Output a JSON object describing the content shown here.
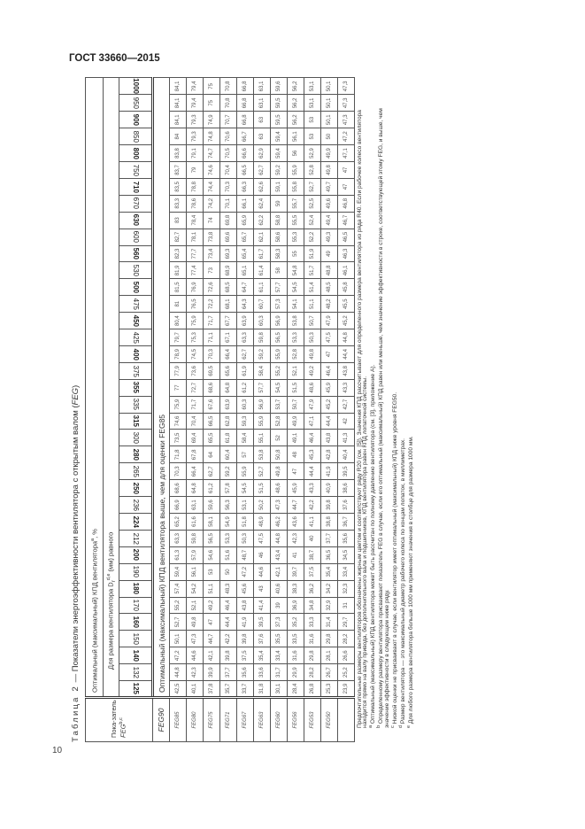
{
  "doc_header": "ГОСТ 33660—2015",
  "page_number": "10",
  "table": {
    "title_label": "Таблица 2",
    "title_text": " — Показатели энергоэффективности вентилятора с открытым валом (",
    "title_feg": "FEG",
    "title_end": ")",
    "label_head": "Пока-затель",
    "label_head_feg": "FEG",
    "label_head_sup": "b,c",
    "header1": "Оптимальный (максимальный) КПД вентилятора",
    "header1_sup": "a",
    "header1_end": ", %",
    "header2": "Для размера вентилятора D",
    "header2_sub": "r",
    "header2_sup": "d,e",
    "header2_end": " (мм) равного",
    "sizes": [
      "125",
      "132",
      "140",
      "150",
      "160",
      "170",
      "180",
      "190",
      "200",
      "212",
      "224",
      "236",
      "250",
      "265",
      "280",
      "300",
      "315",
      "335",
      "355",
      "375",
      "400",
      "425",
      "450",
      "475",
      "500",
      "530",
      "560",
      "600",
      "630",
      "670",
      "710",
      "750",
      "800",
      "850",
      "900",
      "950",
      "1000"
    ],
    "bold_sizes": [
      "125",
      "140",
      "160",
      "180",
      "200",
      "224",
      "250",
      "280",
      "315",
      "355",
      "400",
      "450",
      "500",
      "560",
      "630",
      "710",
      "800",
      "900",
      "1000"
    ],
    "feg90": {
      "label": "FEG90",
      "text": "Оптимальный (максимальный) КПД вентилятора выше, чем для оценки FEG85"
    },
    "rows": [
      {
        "label": "FEG85",
        "values": [
          "42,5",
          "44,8",
          "47,2",
          "50,1",
          "52,7",
          "55,2",
          "57,4",
          "59,4",
          "61,3",
          "63,3",
          "65,2",
          "66,9",
          "68,6",
          "70,3",
          "71,8",
          "73,5",
          "74,6",
          "75,9",
          "77",
          "77,9",
          "78,9",
          "79,7",
          "80,4",
          "81",
          "81,5",
          "81,9",
          "82,3",
          "82,7",
          "83",
          "83,3",
          "83,5",
          "83,7",
          "83,8",
          "84",
          "84,1",
          "84,1",
          "84,1"
        ]
      },
      {
        "label": "FEG80",
        "values": [
          "40,1",
          "42,3",
          "44,6",
          "47,3",
          "49,8",
          "52,1",
          "54,2",
          "56,1",
          "57,9",
          "59,8",
          "61,6",
          "63,1",
          "64,8",
          "66,4",
          "67,8",
          "69,4",
          "70,4",
          "71,7",
          "72,7",
          "73,6",
          "74,5",
          "75,3",
          "75,9",
          "76,5",
          "76,9",
          "77,4",
          "77,7",
          "78,1",
          "78,4",
          "78,6",
          "78,8",
          "79",
          "79,1",
          "79,3",
          "79,3",
          "79,4",
          "79,4"
        ]
      },
      {
        "label": "FEG75",
        "values": [
          "37,8",
          "39,9",
          "42,1",
          "44,7",
          "47",
          "49,2",
          "51,1",
          "53",
          "54,6",
          "56,5",
          "58,1",
          "59,6",
          "61,2",
          "62,7",
          "64",
          "65,5",
          "66,5",
          "67,6",
          "68,6",
          "69,5",
          "70,3",
          "71,1",
          "71,7",
          "72,2",
          "72,6",
          "73",
          "73,4",
          "73,8",
          "74",
          "74,2",
          "74,4",
          "74,6",
          "74,7",
          "74,8",
          "74,9",
          "75",
          "75"
        ]
      },
      {
        "label": "FEG71",
        "values": [
          "35,7",
          "37,7",
          "39,8",
          "42,2",
          "44,4",
          "46,4",
          "48,3",
          "50",
          "51,6",
          "53,3",
          "54,9",
          "56,3",
          "57,8",
          "59,2",
          "60,4",
          "61,8",
          "62,8",
          "63,9",
          "64,8",
          "65,6",
          "66,4",
          "67,1",
          "67,7",
          "68,1",
          "68,5",
          "68,9",
          "69,3",
          "69,6",
          "69,8",
          "70,1",
          "70,3",
          "70,4",
          "70,5",
          "70,6",
          "70,7",
          "70,8",
          "70,8"
        ]
      },
      {
        "label": "FEG67",
        "values": [
          "33,7",
          "35,6",
          "37,5",
          "39,8",
          "41,9",
          "43,8",
          "45,6",
          "47,2",
          "48,7",
          "50,3",
          "51,8",
          "53,1",
          "54,5",
          "55,9",
          "57",
          "58,4",
          "59,3",
          "60,3",
          "61,2",
          "61,9",
          "62,7",
          "63,3",
          "63,9",
          "64,3",
          "64,7",
          "65,1",
          "65,4",
          "65,7",
          "65,9",
          "66,1",
          "66,3",
          "66,5",
          "66,6",
          "66,7",
          "66,8",
          "66,8",
          "66,8"
        ]
      },
      {
        "label": "FEG63",
        "values": [
          "31,8",
          "33,6",
          "35,4",
          "37,6",
          "39,5",
          "41,4",
          "43",
          "44,6",
          "46",
          "47,5",
          "48,9",
          "50,2",
          "51,5",
          "52,7",
          "53,8",
          "55,1",
          "55,9",
          "56,9",
          "57,7",
          "58,4",
          "59,2",
          "59,8",
          "60,3",
          "60,7",
          "61,1",
          "61,4",
          "61,7",
          "62,1",
          "62,2",
          "62,4",
          "62,6",
          "62,7",
          "62,9",
          "63",
          "63",
          "63,1",
          "63,1"
        ]
      },
      {
        "label": "FEG60",
        "values": [
          "30,1",
          "31,7",
          "33,4",
          "35,5",
          "37,3",
          "39",
          "40,6",
          "42,1",
          "43,4",
          "44,8",
          "46,2",
          "47,3",
          "48,6",
          "49,8",
          "50,8",
          "52",
          "52,8",
          "53,7",
          "54,5",
          "55,2",
          "55,9",
          "56,5",
          "56,9",
          "57,3",
          "57,7",
          "58",
          "58,3",
          "58,6",
          "58,8",
          "59",
          "59,1",
          "59,2",
          "59,4",
          "59,4",
          "59,5",
          "59,5",
          "59,6"
        ]
      },
      {
        "label": "FEG56",
        "values": [
          "28,4",
          "29,9",
          "31,6",
          "33,5",
          "35,2",
          "36,9",
          "38,3",
          "39,7",
          "41",
          "42,3",
          "43,6",
          "44,7",
          "45,9",
          "47",
          "48",
          "49,1",
          "49,9",
          "50,7",
          "51,5",
          "52,1",
          "52,8",
          "53,3",
          "53,8",
          "54,1",
          "54,5",
          "54,8",
          "55",
          "55,3",
          "55,5",
          "55,7",
          "55,8",
          "55,9",
          "56",
          "56,1",
          "56,2",
          "56,2",
          "56,2"
        ]
      },
      {
        "label": "FEG53",
        "values": [
          "26,8",
          "28,2",
          "29,8",
          "31,6",
          "33,3",
          "34,8",
          "36,2",
          "37,5",
          "38,7",
          "40",
          "41,1",
          "42,2",
          "43,3",
          "44,4",
          "45,3",
          "46,4",
          "47,1",
          "47,9",
          "48,6",
          "49,2",
          "49,8",
          "50,3",
          "50,7",
          "51,1",
          "51,4",
          "51,7",
          "51,9",
          "52,2",
          "52,4",
          "52,5",
          "52,7",
          "52,8",
          "52,9",
          "53",
          "53",
          "53,1",
          "53,1"
        ]
      },
      {
        "label": "FEG50",
        "values": [
          "25,3",
          "26,7",
          "28,1",
          "29,8",
          "31,4",
          "32,9",
          "34,2",
          "35,4",
          "36,5",
          "37,7",
          "38,8",
          "39,8",
          "40,9",
          "41,9",
          "42,8",
          "43,8",
          "44,4",
          "45,2",
          "45,9",
          "46,4",
          "47",
          "47,5",
          "47,9",
          "48,2",
          "48,5",
          "48,8",
          "49",
          "49,3",
          "49,4",
          "49,6",
          "49,7",
          "49,8",
          "49,9",
          "50",
          "50,1",
          "50,1",
          "50,1"
        ]
      },
      {
        "label": "",
        "values": [
          "23,9",
          "25,2",
          "26,6",
          "28,2",
          "29,7",
          "31",
          "32,3",
          "33,4",
          "34,5",
          "35,6",
          "36,7",
          "37,6",
          "38,6",
          "39,5",
          "40,4",
          "41,3",
          "42",
          "42,7",
          "43,3",
          "43,8",
          "44,4",
          "44,8",
          "45,2",
          "45,5",
          "45,8",
          "46,1",
          "46,3",
          "46,5",
          "46,7",
          "46,8",
          "47",
          "47",
          "47,1",
          "47,2",
          "47,3",
          "47,3",
          "47,3"
        ]
      }
    ]
  },
  "notes": {
    "intro": "Предпочтительные размеры вентиляторов обозначены жирным цветом и соответствуют ряду R20 (см. [5]). Значения КПД рассчитывают для определенного размера вентилятора из ряда R40. Если рабочее колесо вентилятора находится прямо на валу привода, без дополнительного вала и подшипников, КПД вентилятора равен КПД лопаточной системы.",
    "a": "Оптимальный (максимальный) КПД вентилятора может быть рассчитан по полному давлению вентилятора (см. [3], приложение А).",
    "b": "Определенному размеру вентилятора присваивают показатель FEG в случае, если его оптимальный (максимальный) КПД равен или меньше, чем значение эффективности в строке, соответствующей этому FEG, и выше, чем значение эффективности в следующем ниже ряду.",
    "c": "Низкой оценки не присваивают в случае, если вентилятор имеет оптимальный (максимальный) КПД ниже уровня FEG50.",
    "d": "Размер вентилятора — это максимальный диаметр рабочего колеса по концам лопаток, в миллиметрах.",
    "e": "Для любого размера вентилятора больше 1000 мм применяют значения в столбце для размера 1000 мм.",
    "marks": [
      "a",
      "b",
      "c",
      "d",
      "e"
    ]
  }
}
